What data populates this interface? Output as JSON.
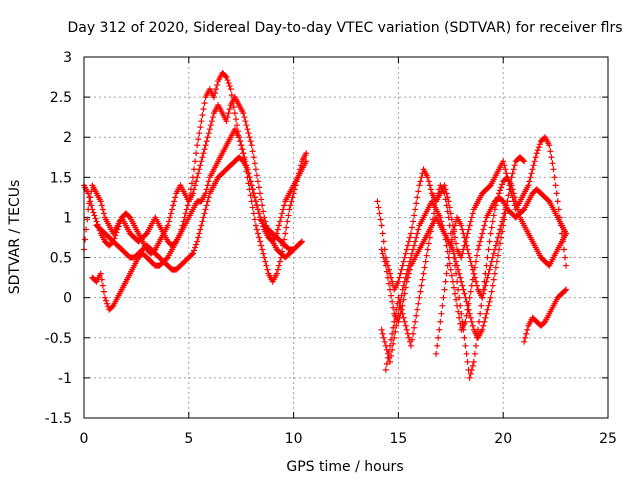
{
  "chart_data": {
    "type": "scatter",
    "title": "Day 312 of 2020, Sidereal Day-to-day VTEC variation (SDTVAR) for receiver flrs",
    "xlabel": "GPS time / hours",
    "ylabel": "SDTVAR / TECUs",
    "xlim": [
      0,
      25
    ],
    "ylim": [
      -1.5,
      3
    ],
    "xticks": [
      "0",
      "5",
      "10",
      "15",
      "20",
      "25"
    ],
    "yticks": [
      "-1.5",
      "-1",
      "-0.5",
      "0",
      "0.5",
      "1",
      "1.5",
      "2",
      "2.5",
      "3"
    ],
    "grid": true,
    "marker": "+",
    "color": "#ff0000",
    "tracks": [
      {
        "x": [
          0.0,
          0.2,
          0.4,
          0.6,
          0.8,
          1.0,
          1.2,
          1.4,
          1.6,
          1.8,
          2.0,
          2.2,
          2.4,
          2.6,
          2.8,
          3.0,
          3.2,
          3.4,
          3.6,
          3.8,
          4.0,
          4.2,
          4.4,
          4.6,
          4.8,
          5.0,
          5.2,
          5.4,
          5.6,
          5.8,
          6.0,
          6.2,
          6.4,
          6.6,
          6.8,
          7.0,
          7.2,
          7.4,
          7.6,
          7.8,
          8.0,
          8.2,
          8.4,
          8.6,
          8.8,
          9.0,
          9.2,
          9.4,
          9.6,
          9.8,
          10.0,
          10.2,
          10.4,
          10.6
        ],
        "y": [
          0.6,
          1.1,
          1.4,
          1.3,
          1.2,
          1.0,
          0.9,
          0.8,
          0.9,
          1.0,
          0.9,
          0.8,
          0.75,
          0.7,
          0.75,
          0.8,
          0.9,
          1.0,
          0.9,
          0.8,
          0.7,
          0.65,
          0.7,
          0.8,
          1.0,
          1.2,
          1.5,
          1.9,
          2.2,
          2.5,
          2.6,
          2.5,
          2.7,
          2.8,
          2.75,
          2.6,
          2.3,
          2.0,
          1.8,
          1.5,
          1.2,
          0.9,
          0.7,
          0.5,
          0.3,
          0.2,
          0.3,
          0.5,
          0.8,
          1.1,
          1.3,
          1.5,
          1.7,
          1.8
        ]
      },
      {
        "x": [
          0.0,
          0.2,
          0.4,
          0.6,
          0.8,
          1.0,
          1.2,
          1.4,
          1.6,
          1.8,
          2.0,
          2.2,
          2.4,
          2.6,
          2.8,
          3.0,
          3.2,
          3.4,
          3.6,
          3.8,
          4.0,
          4.2,
          4.4,
          4.6,
          4.8,
          5.0,
          5.2,
          5.4,
          5.6,
          5.8,
          6.0,
          6.2,
          6.4,
          6.6,
          6.8,
          7.0,
          7.2,
          7.4,
          7.6,
          7.8,
          8.0,
          8.2,
          8.4,
          8.6,
          8.8,
          9.0,
          9.2,
          9.4,
          9.6,
          9.8,
          10.0,
          10.2,
          10.4
        ],
        "y": [
          1.4,
          1.3,
          1.1,
          0.95,
          0.8,
          0.7,
          0.65,
          0.7,
          0.85,
          1.0,
          1.05,
          1.0,
          0.9,
          0.8,
          0.7,
          0.6,
          0.55,
          0.6,
          0.7,
          0.8,
          0.9,
          1.1,
          1.3,
          1.4,
          1.3,
          1.2,
          1.3,
          1.5,
          1.7,
          1.9,
          2.1,
          2.3,
          2.4,
          2.3,
          2.2,
          2.4,
          2.5,
          2.4,
          2.3,
          2.1,
          1.9,
          1.6,
          1.3,
          1.0,
          0.8,
          0.7,
          0.6,
          0.55,
          0.5,
          0.55,
          0.6,
          0.65,
          0.7
        ]
      },
      {
        "x": [
          0.4,
          0.6,
          0.8,
          1.0,
          1.2,
          1.4,
          1.6,
          1.8,
          2.0,
          2.2,
          2.4,
          2.6,
          2.8,
          3.0,
          3.2,
          3.4,
          3.6,
          3.8,
          4.0,
          4.2,
          4.4,
          4.6,
          4.8,
          5.0,
          5.2,
          5.4,
          5.6,
          5.8,
          6.0,
          6.2,
          6.4,
          6.6,
          6.8,
          7.0,
          7.2,
          7.4,
          7.6,
          7.8,
          8.0,
          8.2,
          8.4,
          8.6,
          8.8,
          9.0,
          9.2,
          9.4,
          9.6,
          9.8,
          10.0
        ],
        "y": [
          0.25,
          0.2,
          0.3,
          0.0,
          -0.15,
          -0.1,
          0.0,
          0.1,
          0.2,
          0.3,
          0.4,
          0.5,
          0.55,
          0.5,
          0.45,
          0.4,
          0.4,
          0.45,
          0.5,
          0.6,
          0.7,
          0.8,
          0.9,
          1.0,
          1.1,
          1.2,
          1.2,
          1.3,
          1.5,
          1.6,
          1.7,
          1.8,
          1.9,
          2.0,
          2.1,
          2.0,
          1.8,
          1.6,
          1.4,
          1.2,
          1.0,
          0.9,
          0.85,
          0.8,
          0.75,
          0.7,
          0.65,
          0.6,
          0.6
        ]
      },
      {
        "x": [
          0.6,
          0.8,
          1.0,
          1.2,
          1.4,
          1.6,
          1.8,
          2.0,
          2.2,
          2.4,
          2.6,
          2.8,
          3.0,
          3.2,
          3.4,
          3.6,
          3.8,
          4.0,
          4.2,
          4.4,
          4.6,
          4.8,
          5.0,
          5.2,
          5.4,
          5.6,
          5.8,
          6.0,
          6.2,
          6.4,
          6.6,
          6.8,
          7.0,
          7.2,
          7.4,
          7.6,
          7.8,
          8.0,
          8.2,
          8.4,
          8.6,
          8.8,
          9.0,
          9.2,
          9.4,
          9.6,
          9.8,
          10.0,
          10.2,
          10.4,
          10.6
        ],
        "y": [
          0.9,
          0.85,
          0.8,
          0.75,
          0.7,
          0.65,
          0.6,
          0.55,
          0.5,
          0.5,
          0.55,
          0.6,
          0.65,
          0.6,
          0.55,
          0.5,
          0.45,
          0.4,
          0.35,
          0.35,
          0.4,
          0.45,
          0.5,
          0.55,
          0.7,
          0.9,
          1.1,
          1.3,
          1.4,
          1.5,
          1.55,
          1.6,
          1.65,
          1.7,
          1.75,
          1.7,
          1.6,
          1.4,
          1.2,
          1.0,
          0.85,
          0.75,
          0.7,
          0.8,
          1.0,
          1.2,
          1.3,
          1.4,
          1.5,
          1.6,
          1.7
        ]
      },
      {
        "x": [
          14.0,
          14.2,
          14.4,
          14.6,
          14.8,
          15.0,
          15.2,
          15.4,
          15.6,
          15.8,
          16.0,
          16.2,
          16.4,
          16.6,
          16.8,
          17.0,
          17.2,
          17.4,
          17.6,
          17.8,
          18.0,
          18.2,
          18.4,
          18.6,
          18.8,
          19.0,
          19.2,
          19.4,
          19.6,
          19.8,
          20.0,
          20.2,
          20.4,
          20.6,
          20.8,
          21.0,
          21.2,
          21.4,
          21.6,
          21.8,
          22.0,
          22.2,
          22.4,
          22.6,
          22.8,
          23.0
        ],
        "y": [
          1.2,
          0.9,
          0.5,
          0.3,
          0.1,
          0.2,
          0.4,
          0.6,
          0.8,
          1.1,
          1.4,
          1.6,
          1.5,
          1.3,
          1.2,
          1.3,
          1.4,
          1.2,
          0.9,
          0.6,
          0.5,
          0.7,
          0.9,
          1.1,
          1.2,
          1.3,
          1.35,
          1.4,
          1.5,
          1.6,
          1.7,
          1.5,
          1.3,
          1.1,
          1.2,
          1.3,
          1.4,
          1.6,
          1.8,
          1.95,
          2.0,
          1.9,
          1.6,
          1.2,
          0.8,
          0.4
        ]
      },
      {
        "x": [
          14.2,
          14.4,
          14.6,
          14.8,
          15.0,
          15.2,
          15.4,
          15.6,
          15.8,
          16.0,
          16.2,
          16.4,
          16.6,
          16.8,
          17.0,
          17.2,
          17.4,
          17.6,
          17.8,
          18.0,
          18.2,
          18.4,
          18.6,
          18.8,
          19.0,
          19.2,
          19.4,
          19.6,
          19.8,
          20.0,
          20.2,
          20.4,
          20.6,
          20.8,
          21.0,
          21.2,
          21.4,
          21.6,
          21.8,
          22.0,
          22.2,
          22.4,
          22.6,
          22.8,
          23.0
        ],
        "y": [
          -0.4,
          -0.6,
          -0.8,
          -0.5,
          -0.2,
          0.1,
          0.3,
          0.5,
          0.7,
          0.9,
          1.0,
          1.1,
          1.2,
          1.1,
          1.0,
          0.8,
          0.5,
          0.2,
          -0.1,
          -0.4,
          -0.3,
          0.0,
          0.3,
          0.6,
          0.8,
          1.0,
          1.1,
          1.2,
          1.25,
          1.2,
          1.1,
          1.05,
          1.0,
          1.05,
          1.1,
          1.2,
          1.3,
          1.35,
          1.3,
          1.25,
          1.2,
          1.1,
          1.0,
          0.9,
          0.8
        ]
      },
      {
        "x": [
          14.4,
          14.6,
          14.8,
          15.0,
          15.2,
          15.4,
          15.6,
          15.8,
          16.0,
          16.2,
          16.4,
          16.6,
          16.8,
          17.0,
          17.2,
          17.4,
          17.6,
          17.8,
          18.0,
          18.2,
          18.4,
          18.6,
          18.8,
          19.0,
          19.2,
          19.4,
          19.6,
          19.8,
          20.0,
          20.2,
          20.4,
          20.6,
          20.8,
          21.0,
          21.2,
          21.4,
          21.6,
          21.8,
          22.0,
          22.2,
          22.4,
          22.6,
          22.8,
          23.0
        ],
        "y": [
          -0.9,
          -0.6,
          -0.3,
          0.0,
          -0.2,
          -0.4,
          -0.6,
          -0.3,
          0.0,
          0.3,
          0.6,
          0.9,
          1.2,
          1.4,
          1.3,
          1.0,
          0.6,
          0.2,
          -0.2,
          -0.6,
          -1.0,
          -0.8,
          -0.4,
          0.0,
          0.4,
          0.8,
          1.1,
          1.3,
          1.45,
          1.5,
          1.4,
          1.2,
          1.0,
          0.9,
          0.8,
          0.7,
          0.6,
          0.5,
          0.45,
          0.4,
          0.5,
          0.6,
          0.7,
          0.8
        ]
      },
      {
        "x": [
          14.2,
          14.4,
          14.6,
          14.8,
          15.0,
          15.2,
          15.4,
          15.6,
          15.8,
          16.0,
          16.2,
          16.4,
          16.6,
          16.8,
          17.0,
          17.2,
          17.4,
          17.6,
          17.8,
          18.0,
          18.2,
          18.4,
          18.6,
          18.8,
          19.0,
          19.2,
          19.4,
          19.6,
          19.8,
          20.0,
          20.2,
          20.4,
          20.6,
          20.8,
          21.0
        ],
        "y": [
          0.6,
          0.4,
          0.1,
          -0.2,
          -0.3,
          -0.1,
          0.2,
          0.4,
          0.5,
          0.6,
          0.7,
          0.8,
          0.9,
          1.0,
          0.9,
          0.8,
          0.7,
          0.6,
          0.4,
          0.2,
          0.0,
          -0.2,
          -0.4,
          -0.5,
          -0.4,
          -0.2,
          0.0,
          0.3,
          0.6,
          0.9,
          1.2,
          1.5,
          1.7,
          1.75,
          1.7
        ]
      },
      {
        "x": [
          16.8,
          17.0,
          17.2,
          17.4,
          17.6,
          17.8,
          18.0,
          18.2,
          18.4,
          18.6,
          18.8,
          19.0,
          19.2,
          19.4,
          19.6,
          19.8,
          20.0,
          20.2
        ],
        "y": [
          -0.7,
          -0.3,
          0.1,
          0.5,
          0.8,
          1.0,
          0.9,
          0.7,
          0.5,
          0.3,
          0.1,
          0.0,
          0.2,
          0.4,
          0.6,
          0.8,
          1.0,
          1.2
        ]
      },
      {
        "x": [
          21.0,
          21.2,
          21.4,
          21.6,
          21.8,
          22.0,
          22.2,
          22.4,
          22.6,
          22.8,
          23.0
        ],
        "y": [
          -0.55,
          -0.35,
          -0.25,
          -0.3,
          -0.35,
          -0.3,
          -0.2,
          -0.1,
          0.0,
          0.05,
          0.1
        ]
      }
    ]
  }
}
